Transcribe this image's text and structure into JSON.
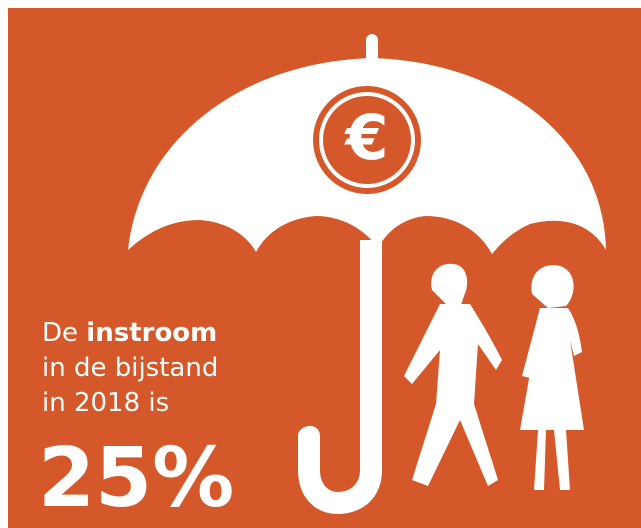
{
  "symbol": "€",
  "text": {
    "line1_plain": "De",
    "line1_bold": "instroom",
    "line2": "in de bijstand",
    "line3": "in 2018 is",
    "figure": "25%"
  }
}
